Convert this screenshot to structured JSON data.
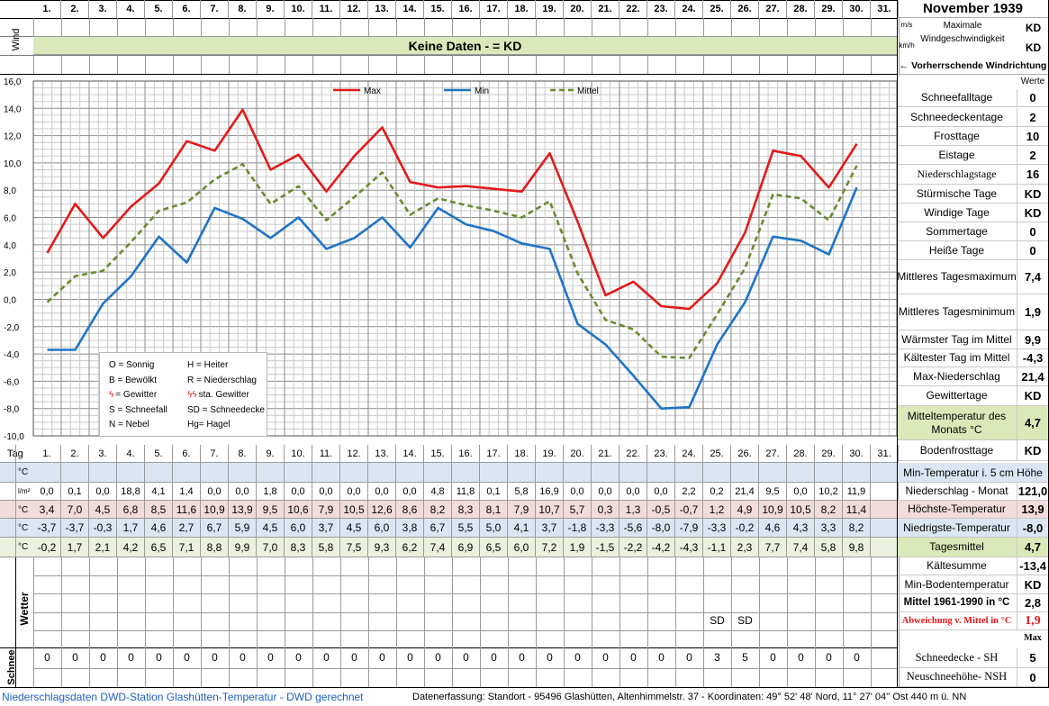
{
  "header": {
    "month_title": "November 1939",
    "wind_label": "Wind",
    "unit_ms": "m/s",
    "unit_kmh": "km/h",
    "max_wind_label": "Maximale Windgeschwindigkeit",
    "max_wind_ms": "KD",
    "max_wind_kmh": "KD",
    "wind_direction_label": "← Vorherrschende Windrichtung",
    "werte_label": "Werte",
    "no_data_banner": "Keine Daten -  = KD"
  },
  "days": [
    "1.",
    "2.",
    "3.",
    "4.",
    "5.",
    "6.",
    "7.",
    "8.",
    "9.",
    "10.",
    "11.",
    "12.",
    "13.",
    "14.",
    "15.",
    "16.",
    "17.",
    "18.",
    "19.",
    "20.",
    "21.",
    "22.",
    "23.",
    "24.",
    "25.",
    "26.",
    "27.",
    "28.",
    "29.",
    "30.",
    "31."
  ],
  "tag_label": "Tag",
  "legend_box": [
    [
      "O = Sonnig",
      "H = Heiter"
    ],
    [
      "B = Bewölkt",
      "R = Niederschlag"
    ],
    [
      "= Gewitter",
      "sta. Gewitter"
    ],
    [
      "S = Schneefall",
      "SD = Schneedecke"
    ],
    [
      "N = Nebel",
      "Hg= Hagel"
    ]
  ],
  "chart_data": {
    "type": "line",
    "x": [
      1,
      2,
      3,
      4,
      5,
      6,
      7,
      8,
      9,
      10,
      11,
      12,
      13,
      14,
      15,
      16,
      17,
      18,
      19,
      20,
      21,
      22,
      23,
      24,
      25,
      26,
      27,
      28,
      29,
      30
    ],
    "ylim": [
      -10,
      16
    ],
    "yticks": [
      "16,0",
      "14,0",
      "12,0",
      "10,0",
      "8,0",
      "6,0",
      "4,0",
      "2,0",
      "0,0",
      "-2,0",
      "-4,0",
      "-6,0",
      "-8,0",
      "-10,0"
    ],
    "grid": true,
    "legend_position": "top",
    "series": [
      {
        "name": "Max",
        "color": "#e31a1a",
        "dash": "none",
        "values": [
          3.4,
          7.0,
          4.5,
          6.8,
          8.5,
          11.6,
          10.9,
          13.9,
          9.5,
          10.6,
          7.9,
          10.5,
          12.6,
          8.6,
          8.2,
          8.3,
          8.1,
          7.9,
          10.7,
          5.7,
          0.3,
          1.3,
          -0.5,
          -0.7,
          1.2,
          4.9,
          10.9,
          10.5,
          8.2,
          11.4
        ]
      },
      {
        "name": "Min",
        "color": "#1f74c6",
        "dash": "none",
        "values": [
          -3.7,
          -3.7,
          -0.3,
          1.7,
          4.6,
          2.7,
          6.7,
          5.9,
          4.5,
          6.0,
          3.7,
          4.5,
          6.0,
          3.8,
          6.7,
          5.5,
          5.0,
          4.1,
          3.7,
          -1.8,
          -3.3,
          -5.6,
          -8.0,
          -7.9,
          -3.3,
          -0.2,
          4.6,
          4.3,
          3.3,
          8.2
        ]
      },
      {
        "name": "Mittel",
        "color": "#6a8a2e",
        "dash": "6,4",
        "values": [
          -0.2,
          1.7,
          2.1,
          4.2,
          6.5,
          7.1,
          8.8,
          9.9,
          7.0,
          8.3,
          5.8,
          7.5,
          9.3,
          6.2,
          7.4,
          6.9,
          6.5,
          6.0,
          7.2,
          1.9,
          -1.5,
          -2.2,
          -4.2,
          -4.3,
          -1.1,
          2.3,
          7.7,
          7.4,
          5.8,
          9.8
        ]
      }
    ]
  },
  "table": {
    "precip_unit": "l/m²",
    "temp_unit": "°C",
    "precip": [
      "0,0",
      "0,1",
      "0,0",
      "18,8",
      "4,1",
      "1,4",
      "0,0",
      "0,0",
      "1,8",
      "0,0",
      "0,0",
      "0,0",
      "0,0",
      "0,0",
      "4,8",
      "11,8",
      "0,1",
      "5,8",
      "16,9",
      "0,0",
      "0,0",
      "0,0",
      "0,0",
      "2,2",
      "0,2",
      "21,4",
      "9,5",
      "0,0",
      "10,2",
      "11,9",
      ""
    ],
    "max": [
      "3,4",
      "7,0",
      "4,5",
      "6,8",
      "8,5",
      "11,6",
      "10,9",
      "13,9",
      "9,5",
      "10,6",
      "7,9",
      "10,5",
      "12,6",
      "8,6",
      "8,2",
      "8,3",
      "8,1",
      "7,9",
      "10,7",
      "5,7",
      "0,3",
      "1,3",
      "-0,5",
      "-0,7",
      "1,2",
      "4,9",
      "10,9",
      "10,5",
      "8,2",
      "11,4",
      ""
    ],
    "min": [
      "-3,7",
      "-3,7",
      "-0,3",
      "1,7",
      "4,6",
      "2,7",
      "6,7",
      "5,9",
      "4,5",
      "6,0",
      "3,7",
      "4,5",
      "6,0",
      "3,8",
      "6,7",
      "5,5",
      "5,0",
      "4,1",
      "3,7",
      "-1,8",
      "-3,3",
      "-5,6",
      "-8,0",
      "-7,9",
      "-3,3",
      "-0,2",
      "4,6",
      "4,3",
      "3,3",
      "8,2",
      ""
    ],
    "mean": [
      "-0,2",
      "1,7",
      "2,1",
      "4,2",
      "6,5",
      "7,1",
      "8,8",
      "9,9",
      "7,0",
      "8,3",
      "5,8",
      "7,5",
      "9,3",
      "6,2",
      "7,4",
      "6,9",
      "6,5",
      "6,0",
      "7,2",
      "1,9",
      "-1,5",
      "-2,2",
      "-4,2",
      "-4,3",
      "-1,1",
      "2,3",
      "7,7",
      "7,4",
      "5,8",
      "9,8",
      ""
    ],
    "wetter_label": "Wetter",
    "wetter_sd_row": [
      "",
      "",
      "",
      "",
      "",
      "",
      "",
      "",
      "",
      "",
      "",
      "",
      "",
      "",
      "",
      "",
      "",
      "",
      "",
      "",
      "",
      "",
      "",
      "",
      "SD",
      "SD",
      "",
      "",
      "",
      "",
      ""
    ],
    "schnee_label": "Schnee",
    "schnee": [
      "0",
      "0",
      "0",
      "0",
      "0",
      "0",
      "0",
      "0",
      "0",
      "0",
      "0",
      "0",
      "0",
      "0",
      "0",
      "0",
      "0",
      "0",
      "0",
      "0",
      "0",
      "0",
      "0",
      "0",
      "3",
      "5",
      "0",
      "0",
      "0",
      "0",
      ""
    ]
  },
  "stats": [
    {
      "label": "Schneefalltage",
      "value": "0"
    },
    {
      "label": "Schneedeckentage",
      "value": "2"
    },
    {
      "label": "Frosttage",
      "value": "10"
    },
    {
      "label": "Eistage",
      "value": "2"
    },
    {
      "label": "Niederschlagstage",
      "value": "16"
    },
    {
      "label": "Stürmische Tage",
      "value": "KD"
    },
    {
      "label": "Windige Tage",
      "value": "KD"
    },
    {
      "label": "Sommertage",
      "value": "0"
    },
    {
      "label": "Heiße Tage",
      "value": "0"
    },
    {
      "label": "Mittleres Tagesmaximum",
      "value": "7,4"
    },
    {
      "label": "Mittleres Tagesminimum",
      "value": "1,9"
    },
    {
      "label": "Wärmster Tag im Mittel",
      "value": "9,9"
    },
    {
      "label": "Kältester Tag im Mittel",
      "value": "-4,3"
    },
    {
      "label": "Max-Niederschlag",
      "value": "21,4"
    },
    {
      "label": "Gewittertage",
      "value": "KD"
    },
    {
      "label": "Mitteltemperatur des Monats °C",
      "value": "4,7"
    },
    {
      "label": "Bodenfrosttage",
      "value": "KD"
    }
  ],
  "summary": {
    "min_temp_5cm_label": "Min-Temperatur i. 5 cm Höhe",
    "precip_month_label": "Niederschlag - Monat",
    "precip_month_value": "121,0",
    "highest_label": "Höchste-Temperatur",
    "highest_value": "13,9",
    "lowest_label": "Niedrigste-Temperatur",
    "lowest_value": "-8,0",
    "daily_mean_label": "Tagesmittel",
    "daily_mean_value": "4,7",
    "cold_sum_label": "Kältesumme",
    "cold_sum_value": "-13,4",
    "min_ground_label": "Min-Bodentemperatur",
    "min_ground_value": "KD",
    "mean_1961_label": "Mittel 1961-1990 in °C",
    "mean_1961_value": "2,8",
    "deviation_label": "Abweichung v. Mittel in °C",
    "deviation_value": "1,9",
    "max_label": "Max",
    "snow_cover_label": "Schneedecke -  SH",
    "snow_cover_value": "5",
    "new_snow_label": "Neuschneehöhe- NSH",
    "new_snow_value": "0"
  },
  "footer": {
    "left": "Niederschlagsdaten DWD-Station Glashütten-Temperatur -  DWD gerechnet",
    "right": "Datenerfassung:  Standort -  95496  Glashütten, Altenhimmelstr. 37 - Koordinaten:  49° 52' 48' Nord,   11° 27' 04'' Ost   440 m ü. NN"
  }
}
